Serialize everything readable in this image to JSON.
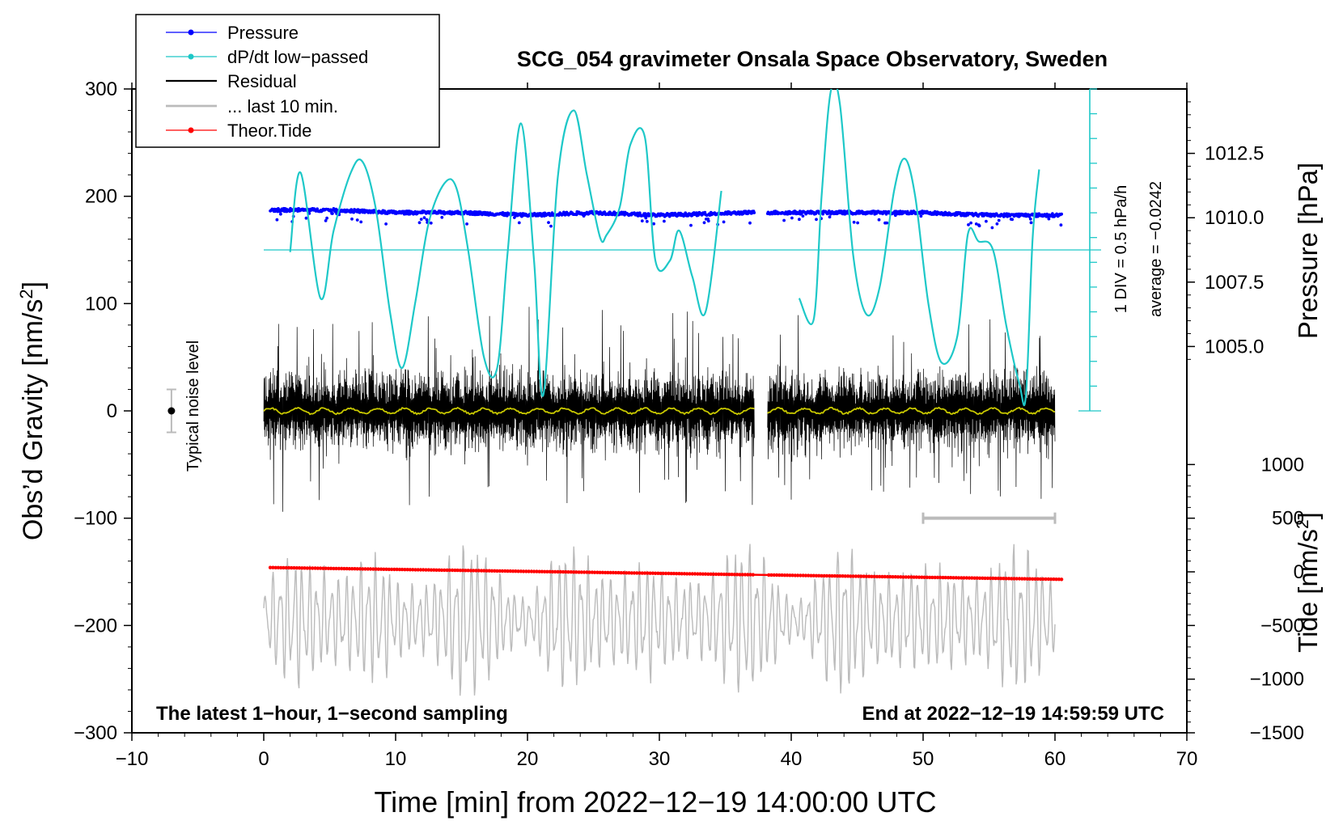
{
  "chart_data": {
    "type": "line",
    "title": "SCG_054 gravimeter Onsala Space Observatory, Sweden",
    "xlabel": "Time [min] from 2022−12−19 14:00:00 UTC",
    "ylabel_left_main": "Obs’d Gravity [nm/s",
    "ylabel_left_sup": "2",
    "ylabel_left_tail": "]",
    "ylabel_right_pressure": "Pressure [hPa]",
    "ylabel_right_tide_main": "Tide [nm/s",
    "ylabel_right_tide_sup": "2",
    "ylabel_right_tide_tail": "]",
    "xlim": [
      -10,
      70
    ],
    "ylim": [
      -300,
      300
    ],
    "x_ticks": [
      -10,
      0,
      10,
      20,
      30,
      40,
      50,
      60,
      70
    ],
    "x_tick_labels": [
      "−10",
      "0",
      "10",
      "20",
      "30",
      "40",
      "50",
      "60",
      "70"
    ],
    "y_ticks": [
      300,
      200,
      100,
      0,
      -100,
      -200,
      -300
    ],
    "y_tick_labels": [
      "300",
      "200",
      "100",
      "0",
      "−100",
      "−200",
      "−300"
    ],
    "pressure_axis": {
      "ticks": [
        1012.5,
        1010.0,
        1007.5,
        1005.0
      ],
      "tick_labels": [
        "1012.5",
        "1010.0",
        "1007.5",
        "1005.0"
      ],
      "map_gravity": [
        [
          1012.5,
          240
        ],
        [
          1005.0,
          60
        ]
      ]
    },
    "tide_axis": {
      "ticks": [
        1000,
        500,
        0,
        -500,
        -1000,
        -1500
      ],
      "tick_labels": [
        "1000",
        "500",
        "0",
        "−500",
        "−1000",
        "−1500"
      ],
      "map_gravity": [
        [
          1000,
          -50
        ],
        [
          -1500,
          -300
        ]
      ]
    },
    "legend": {
      "position": "top-left",
      "entries": [
        {
          "label": "Pressure",
          "color": "#0000ff",
          "marker": "dot"
        },
        {
          "label": "dP/dt low−passed",
          "color": "#1ec8c8",
          "marker": "dot"
        },
        {
          "label": "Residual",
          "color": "#000000",
          "marker": "none"
        },
        {
          "label": "... last 10 min.",
          "color": "#bbbbbb",
          "marker": "none"
        },
        {
          "label": "Theor.Tide",
          "color": "#ff0000",
          "marker": "dot"
        }
      ]
    },
    "annotations": {
      "bottom_left": "The latest 1−hour, 1−second sampling",
      "bottom_right": "End at 2022−12−19 14:59:59 UTC",
      "noise_label": "Typical noise level",
      "dpdt_scale": "1 DIV = 0.5 hPa/h",
      "dpdt_average": "average = −0.0242"
    },
    "noise_bar": {
      "x": -7,
      "center": 0,
      "low": -20,
      "high": 20
    },
    "last10_span": {
      "x_start": 50,
      "x_end": 60,
      "y": -100
    },
    "gaps": [
      [
        37.2,
        38.2
      ]
    ],
    "series": [
      {
        "name": "Pressure",
        "unit": "hPa",
        "color": "#0000ff",
        "x": [
          0.5,
          5,
          10,
          15,
          20,
          25,
          30,
          37,
          38.5,
          45,
          50,
          55,
          60.5
        ],
        "values": [
          1010.3,
          1010.3,
          1010.2,
          1010.2,
          1010.1,
          1010.2,
          1010.1,
          1010.2,
          1010.2,
          1010.2,
          1010.2,
          1010.1,
          1010.1
        ]
      },
      {
        "name": "dP/dt low-passed",
        "color": "#1ec8c8",
        "baseline_gravity": 150,
        "x": [
          2.0,
          2.8,
          4.3,
          5.3,
          6.6,
          7.5,
          8.5,
          9.6,
          10.5,
          11.5,
          12.5,
          13.7,
          14.6,
          15.5,
          16.7,
          17.7,
          18.5,
          19.5,
          20.5,
          21.2,
          22.3,
          23.5,
          24.5,
          25.5,
          26.0,
          27.0,
          27.8,
          28.9,
          29.7,
          30.8,
          31.5,
          32.5,
          33.5,
          34.7,
          40.6,
          41.7,
          42.3,
          43.0,
          43.7,
          44.7,
          45.7,
          46.7,
          47.8,
          48.6,
          49.4,
          50.4,
          51.4,
          52.6,
          53.4,
          54.2,
          55.3,
          56.3,
          57.3,
          57.8,
          58.3,
          58.8
        ],
        "values": [
          148,
          222,
          105,
          168,
          222,
          232,
          188,
          90,
          40,
          102,
          175,
          212,
          208,
          150,
          50,
          40,
          148,
          268,
          140,
          15,
          218,
          280,
          220,
          162,
          164,
          190,
          248,
          255,
          140,
          140,
          168,
          125,
          92,
          205,
          105,
          85,
          200,
          298,
          285,
          145,
          90,
          115,
          205,
          235,
          200,
          100,
          45,
          70,
          165,
          158,
          150,
          80,
          25,
          15,
          160,
          225
        ]
      },
      {
        "name": "Residual",
        "color": "#000000",
        "x_range": [
          0,
          60
        ],
        "typical_amplitude": 45,
        "peak_amplitude": 100,
        "running_mean_color": "#c8c800",
        "running_mean": 0
      },
      {
        "name": "Theor.Tide",
        "unit": "nm/s2",
        "color": "#ff0000",
        "x": [
          0.5,
          60.5
        ],
        "values": [
          40,
          -70
        ]
      },
      {
        "name": "... last 10 min.",
        "color": "#bbbbbb",
        "x_range": [
          0,
          60
        ],
        "center_gravity": -195,
        "amplitude_gravity": 55
      }
    ]
  }
}
